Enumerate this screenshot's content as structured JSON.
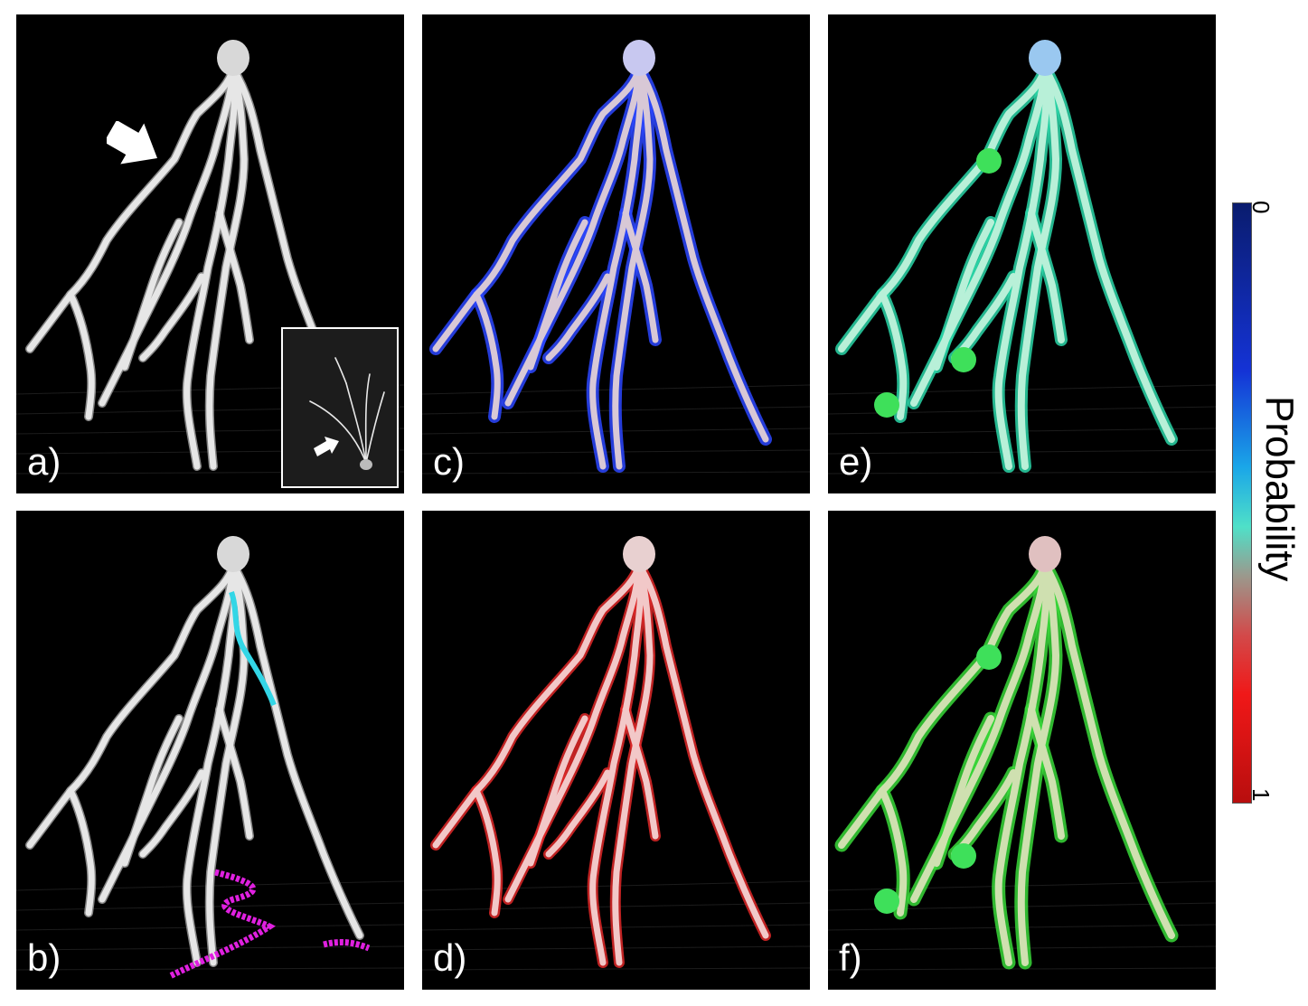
{
  "panels": [
    {
      "id": "a",
      "label": "a)",
      "style": "gray",
      "has_arrow": true,
      "has_inset": true
    },
    {
      "id": "b",
      "label": "b)",
      "style": "gray-traced",
      "has_arrow": false,
      "has_inset": false
    },
    {
      "id": "c",
      "label": "c)",
      "style": "blue",
      "has_arrow": false,
      "has_inset": false
    },
    {
      "id": "d",
      "label": "d)",
      "style": "red",
      "has_arrow": false,
      "has_inset": false
    },
    {
      "id": "e",
      "label": "e)",
      "style": "cyan-green",
      "has_arrow": false,
      "has_inset": false
    },
    {
      "id": "f",
      "label": "f)",
      "style": "green",
      "has_arrow": false,
      "has_inset": false
    }
  ],
  "colorbar": {
    "title": "Probability",
    "tick_top": "0",
    "tick_bottom": "1",
    "colors": [
      "#0a1c6e",
      "#1433d6",
      "#1aa6e8",
      "#4fe0c8",
      "#9a9a8e",
      "#d24a4a",
      "#f01818",
      "#b80e0e"
    ]
  },
  "icons": {
    "arrow": "arrow-icon"
  }
}
